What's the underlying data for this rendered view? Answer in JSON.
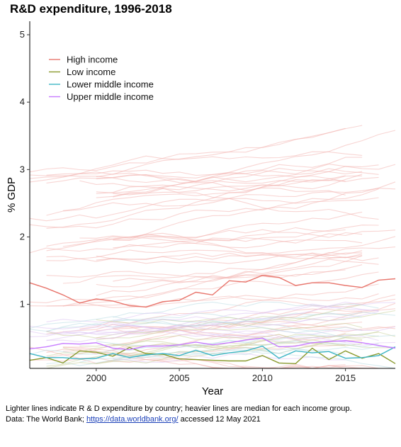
{
  "chart_data": {
    "type": "line",
    "title": "R&D expenditure, 1996-2018",
    "xlabel": "Year",
    "ylabel": "% GDP",
    "xlim": [
      1996,
      2018
    ],
    "ylim": [
      0.05,
      5.2
    ],
    "x_ticks": [
      2000,
      2005,
      2010,
      2015
    ],
    "y_ticks": [
      1,
      2,
      3,
      4,
      5
    ],
    "grid": false,
    "legend_position": "top-left",
    "x": [
      1996,
      1997,
      1998,
      1999,
      2000,
      2001,
      2002,
      2003,
      2004,
      2005,
      2006,
      2007,
      2008,
      2009,
      2010,
      2011,
      2012,
      2013,
      2014,
      2015,
      2016,
      2017,
      2018
    ],
    "series": [
      {
        "name": "High income",
        "color": "#e8766d",
        "values": [
          1.32,
          1.24,
          1.14,
          1.02,
          1.08,
          1.05,
          0.98,
          0.96,
          1.04,
          1.06,
          1.18,
          1.14,
          1.35,
          1.33,
          1.43,
          1.4,
          1.28,
          1.32,
          1.32,
          1.28,
          1.25,
          1.36,
          1.38
        ]
      },
      {
        "name": "Low income",
        "color": "#8a9a2e",
        "values": [
          0.17,
          0.21,
          0.13,
          0.31,
          0.29,
          0.23,
          0.36,
          0.27,
          0.26,
          0.19,
          0.18,
          0.17,
          0.16,
          0.16,
          0.24,
          0.13,
          0.12,
          0.35,
          0.18,
          0.31,
          0.2,
          0.27,
          0.12
        ]
      },
      {
        "name": "Lower middle income",
        "color": "#3db5c5",
        "values": [
          0.27,
          0.21,
          0.21,
          0.19,
          0.2,
          0.27,
          0.21,
          0.25,
          0.27,
          0.24,
          0.32,
          0.24,
          0.28,
          0.31,
          0.38,
          0.2,
          0.31,
          0.28,
          0.3,
          0.2,
          0.21,
          0.24,
          0.37
        ]
      },
      {
        "name": "Upper middle income",
        "color": "#c77cff",
        "values": [
          0.34,
          0.37,
          0.42,
          0.41,
          0.43,
          0.35,
          0.33,
          0.38,
          0.38,
          0.4,
          0.44,
          0.4,
          0.43,
          0.47,
          0.5,
          0.37,
          0.38,
          0.43,
          0.45,
          0.46,
          0.43,
          0.39,
          0.35
        ]
      }
    ],
    "background_series_note": "Lighter lines indicate R & D expenditure by country; heavier lines are median for each income group."
  },
  "caption": {
    "line1": "Lighter lines indicate R & D expenditure by country; heavier lines are median for each income group.",
    "line2_prefix": "Data: The World Bank; ",
    "link_text": "https://data.worldbank.org/",
    "line2_suffix": " accessed 12 May 2021"
  }
}
